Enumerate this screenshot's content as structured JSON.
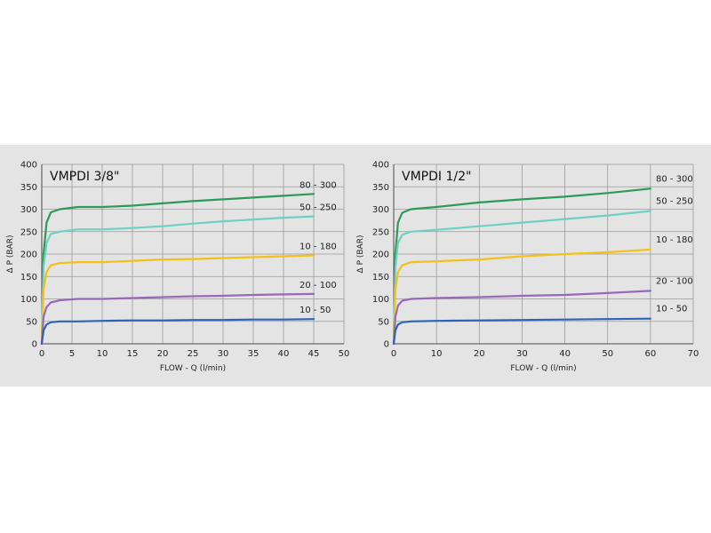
{
  "chart_data": [
    {
      "type": "line",
      "title": "VMPDI 3/8\"",
      "xlabel": "FLOW - Q (l/min)",
      "ylabel": "Δ P (BAR)",
      "xlim": [
        0,
        50
      ],
      "ylim": [
        0,
        400
      ],
      "xticks": [
        0,
        5,
        10,
        15,
        20,
        25,
        30,
        35,
        40,
        45,
        50
      ],
      "yticks": [
        0,
        50,
        100,
        150,
        200,
        250,
        300,
        350,
        400
      ],
      "grid": true,
      "series": [
        {
          "name": "80 - 300",
          "color": "#2e9a5a",
          "points": [
            [
              0,
              0
            ],
            [
              0.3,
              200
            ],
            [
              0.8,
              270
            ],
            [
              1.5,
              293
            ],
            [
              3,
              300
            ],
            [
              6,
              305
            ],
            [
              10,
              305
            ],
            [
              15,
              308
            ],
            [
              20,
              313
            ],
            [
              25,
              318
            ],
            [
              30,
              322
            ],
            [
              35,
              326
            ],
            [
              40,
              330
            ],
            [
              45,
              334
            ]
          ]
        },
        {
          "name": "50 - 250",
          "color": "#6fd0c4",
          "points": [
            [
              0,
              0
            ],
            [
              0.3,
              170
            ],
            [
              0.8,
              225
            ],
            [
              1.5,
              245
            ],
            [
              3,
              250
            ],
            [
              6,
              255
            ],
            [
              10,
              255
            ],
            [
              15,
              258
            ],
            [
              20,
              262
            ],
            [
              25,
              268
            ],
            [
              30,
              273
            ],
            [
              35,
              277
            ],
            [
              40,
              281
            ],
            [
              45,
              284
            ]
          ]
        },
        {
          "name": "10 - 180",
          "color": "#f2c21a",
          "points": [
            [
              0,
              0
            ],
            [
              0.3,
              120
            ],
            [
              0.8,
              160
            ],
            [
              1.5,
              175
            ],
            [
              3,
              180
            ],
            [
              6,
              182
            ],
            [
              10,
              182
            ],
            [
              15,
              185
            ],
            [
              20,
              188
            ],
            [
              25,
              189
            ],
            [
              30,
              191
            ],
            [
              35,
              193
            ],
            [
              40,
              195
            ],
            [
              45,
              197
            ]
          ]
        },
        {
          "name": "20 - 100",
          "color": "#9a68b8",
          "points": [
            [
              0,
              0
            ],
            [
              0.3,
              60
            ],
            [
              0.8,
              82
            ],
            [
              1.5,
              92
            ],
            [
              3,
              97
            ],
            [
              6,
              100
            ],
            [
              10,
              100
            ],
            [
              15,
              102
            ],
            [
              20,
              104
            ],
            [
              25,
              106
            ],
            [
              30,
              107
            ],
            [
              35,
              109
            ],
            [
              40,
              110
            ],
            [
              45,
              111
            ]
          ]
        },
        {
          "name": "10 - 50",
          "color": "#2e62b8",
          "points": [
            [
              0,
              0
            ],
            [
              0.3,
              30
            ],
            [
              0.8,
              43
            ],
            [
              1.5,
              48
            ],
            [
              3,
              50
            ],
            [
              6,
              50
            ],
            [
              10,
              51
            ],
            [
              15,
              52
            ],
            [
              20,
              52
            ],
            [
              25,
              53
            ],
            [
              30,
              53
            ],
            [
              35,
              54
            ],
            [
              40,
              54
            ],
            [
              45,
              55
            ]
          ]
        }
      ]
    },
    {
      "type": "line",
      "title": "VMPDI 1/2\"",
      "xlabel": "FLOW - Q (l/min)",
      "ylabel": "Δ P (BAR)",
      "xlim": [
        0,
        70
      ],
      "ylim": [
        0,
        400
      ],
      "xticks": [
        0,
        10,
        20,
        30,
        40,
        50,
        60,
        70
      ],
      "yticks": [
        0,
        50,
        100,
        150,
        200,
        250,
        300,
        350,
        400
      ],
      "grid": true,
      "series": [
        {
          "name": "80 - 300",
          "color": "#2e9a5a",
          "points": [
            [
              0,
              0
            ],
            [
              0.4,
              200
            ],
            [
              1,
              270
            ],
            [
              2,
              292
            ],
            [
              4,
              300
            ],
            [
              10,
              305
            ],
            [
              20,
              315
            ],
            [
              30,
              322
            ],
            [
              40,
              328
            ],
            [
              50,
              336
            ],
            [
              60,
              346
            ]
          ]
        },
        {
          "name": "50 - 250",
          "color": "#6fd0c4",
          "points": [
            [
              0,
              0
            ],
            [
              0.4,
              170
            ],
            [
              1,
              225
            ],
            [
              2,
              243
            ],
            [
              4,
              250
            ],
            [
              10,
              254
            ],
            [
              20,
              262
            ],
            [
              30,
              270
            ],
            [
              40,
              278
            ],
            [
              50,
              286
            ],
            [
              60,
              296
            ]
          ]
        },
        {
          "name": "10 - 180",
          "color": "#f2c21a",
          "points": [
            [
              0,
              0
            ],
            [
              0.4,
              120
            ],
            [
              1,
              160
            ],
            [
              2,
              175
            ],
            [
              4,
              182
            ],
            [
              10,
              184
            ],
            [
              20,
              188
            ],
            [
              30,
              195
            ],
            [
              40,
              200
            ],
            [
              50,
              204
            ],
            [
              60,
              210
            ]
          ]
        },
        {
          "name": "20 - 100",
          "color": "#9a68b8",
          "points": [
            [
              0,
              0
            ],
            [
              0.4,
              60
            ],
            [
              1,
              85
            ],
            [
              2,
              96
            ],
            [
              4,
              100
            ],
            [
              10,
              102
            ],
            [
              20,
              104
            ],
            [
              30,
              107
            ],
            [
              40,
              109
            ],
            [
              50,
              113
            ],
            [
              60,
              118
            ]
          ]
        },
        {
          "name": "10 - 50",
          "color": "#2e62b8",
          "points": [
            [
              0,
              0
            ],
            [
              0.4,
              30
            ],
            [
              1,
              43
            ],
            [
              2,
              48
            ],
            [
              4,
              50
            ],
            [
              10,
              51
            ],
            [
              20,
              52
            ],
            [
              30,
              53
            ],
            [
              40,
              54
            ],
            [
              50,
              55
            ],
            [
              60,
              56
            ]
          ]
        }
      ]
    }
  ]
}
